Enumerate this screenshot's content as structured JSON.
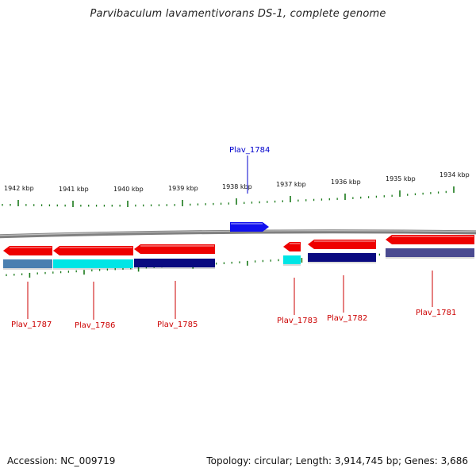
{
  "title": "Parvibaculum lavamentivorans DS-1, complete genome",
  "footer": {
    "accession": "Accession: NC_009719",
    "summary": "Topology: circular; Length: 3,914,745 bp; Genes: 3,686"
  },
  "colors": {
    "backbone": "#808080",
    "tick": "#1a7a1a",
    "forward_gene": "#1010ee",
    "reverse_gene": "#ee0000",
    "forward_label": "#0000cc",
    "reverse_label": "#cc0000"
  },
  "ticks": [
    {
      "label": "1942 kbp"
    },
    {
      "label": "1941 kbp"
    },
    {
      "label": "1940 kbp"
    },
    {
      "label": "1939 kbp"
    },
    {
      "label": "1938 kbp"
    },
    {
      "label": "1937 kbp"
    },
    {
      "label": "1936 kbp"
    },
    {
      "label": "1935 kbp"
    },
    {
      "label": "1934 kbp"
    }
  ],
  "genes": [
    {
      "id": "Plav_1787",
      "strand": "reverse",
      "cog_color": "#4a7fb0"
    },
    {
      "id": "Plav_1786",
      "strand": "reverse",
      "cog_color": "#00e5e5"
    },
    {
      "id": "Plav_1785",
      "strand": "reverse",
      "cog_color": "#0a0a80"
    },
    {
      "id": "Plav_1784",
      "strand": "forward",
      "cog_color": null
    },
    {
      "id": "Plav_1783",
      "strand": "reverse",
      "cog_color": "#00e5e5"
    },
    {
      "id": "Plav_1782",
      "strand": "reverse",
      "cog_color": "#0a0a80"
    },
    {
      "id": "Plav_1781",
      "strand": "reverse",
      "cog_color": "#4a4a90"
    }
  ]
}
